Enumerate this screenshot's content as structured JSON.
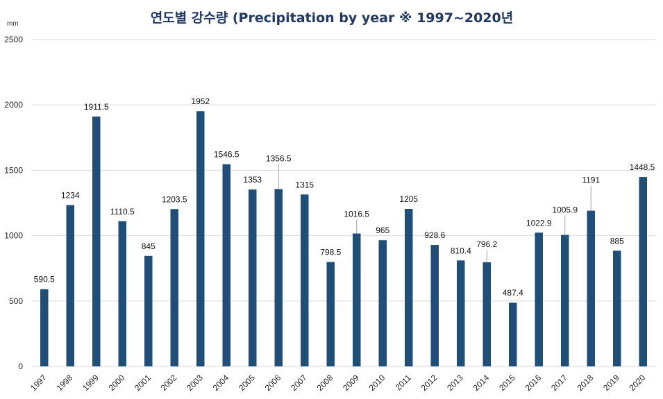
{
  "chart_data": {
    "type": "bar",
    "title": "연도별 강수량 (Precipitation by year ※ 1997~2020년",
    "yunit": "mm",
    "categories": [
      "1997",
      "1998",
      "1999",
      "2000",
      "2001",
      "2002",
      "2003",
      "2004",
      "2005",
      "2006",
      "2007",
      "2008",
      "2009",
      "2010",
      "2011",
      "2012",
      "2013",
      "2014",
      "2015",
      "2016",
      "2017",
      "2018",
      "2019",
      "2020"
    ],
    "values": [
      590.5,
      1234,
      1911.5,
      1110.5,
      845,
      1203.5,
      1952,
      1546.5,
      1353,
      1356.5,
      1315,
      798.5,
      1016.5,
      965,
      1205,
      928.6,
      810.4,
      796.2,
      487.4,
      1022.9,
      1005.9,
      1191,
      885,
      1448.5
    ],
    "data_labels": [
      "590.5",
      "1234",
      "1911.5",
      "1110.5",
      "845",
      "1203.5",
      "1952",
      "1546.5",
      "1353",
      "1356.5",
      "1315",
      "798.5",
      "1016.5",
      "965",
      "1205",
      "928.6",
      "810.4",
      "796.2",
      "487.4",
      "1022.9",
      "1005.9",
      "1191",
      "885",
      "1448.5"
    ],
    "yticks": [
      "0",
      "500",
      "1000",
      "1500",
      "2000",
      "2500"
    ],
    "ylim": [
      0,
      2500
    ],
    "grid": true,
    "bar_color": "#1f4e79",
    "title_color": "#1f3864",
    "grid_color": "#d9d9d9"
  }
}
